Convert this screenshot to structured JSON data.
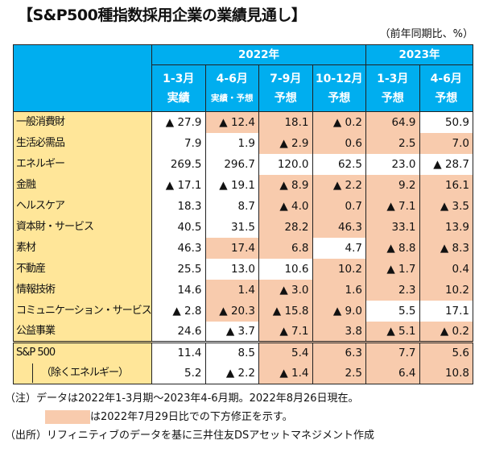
{
  "title": "【S&P500種指数採用企業の業績見通し】",
  "unit": "（前年同期比、%）",
  "colors": {
    "header": "#00aeef",
    "label": "#ffe699",
    "revised_down": "#f8cbad"
  },
  "chart_data": {
    "type": "table",
    "years": [
      {
        "label": "2022年",
        "span": 4
      },
      {
        "label": "2023年",
        "span": 2
      }
    ],
    "columns": [
      {
        "period": "1-3月",
        "status": "実績"
      },
      {
        "period": "4-6月",
        "status": "実績・予想"
      },
      {
        "period": "7-9月",
        "status": "予想"
      },
      {
        "period": "10-12月",
        "status": "予想"
      },
      {
        "period": "1-3月",
        "status": "予想"
      },
      {
        "period": "4-6月",
        "status": "予想"
      }
    ],
    "rows": [
      {
        "label": "一般消費財",
        "values": [
          "▲ 27.9",
          "▲ 12.4",
          "18.1",
          "▲ 0.2",
          "64.9",
          "50.9"
        ],
        "revised_down": [
          false,
          true,
          true,
          true,
          true,
          false
        ]
      },
      {
        "label": "生活必需品",
        "values": [
          "7.9",
          "1.9",
          "▲ 2.9",
          "0.6",
          "2.5",
          "7.0"
        ],
        "revised_down": [
          false,
          false,
          true,
          true,
          true,
          true
        ]
      },
      {
        "label": "エネルギー",
        "values": [
          "269.5",
          "296.7",
          "120.0",
          "62.5",
          "23.0",
          "▲ 28.7"
        ],
        "revised_down": [
          false,
          false,
          false,
          false,
          false,
          false
        ]
      },
      {
        "label": "金融",
        "values": [
          "▲ 17.1",
          "▲ 19.1",
          "▲ 8.9",
          "▲ 2.2",
          "9.2",
          "16.1"
        ],
        "revised_down": [
          false,
          false,
          true,
          true,
          true,
          true
        ]
      },
      {
        "label": "ヘルスケア",
        "values": [
          "18.3",
          "8.7",
          "▲ 4.0",
          "0.7",
          "▲ 7.1",
          "▲ 3.5"
        ],
        "revised_down": [
          false,
          false,
          true,
          true,
          true,
          true
        ]
      },
      {
        "label": "資本財・サービス",
        "values": [
          "40.5",
          "31.5",
          "28.2",
          "46.3",
          "33.1",
          "13.9"
        ],
        "revised_down": [
          false,
          false,
          true,
          true,
          true,
          true
        ]
      },
      {
        "label": "素材",
        "values": [
          "46.3",
          "17.4",
          "6.8",
          "4.7",
          "▲ 8.8",
          "▲ 8.3"
        ],
        "revised_down": [
          false,
          true,
          true,
          false,
          true,
          true
        ]
      },
      {
        "label": "不動産",
        "values": [
          "25.5",
          "13.0",
          "10.6",
          "10.2",
          "▲ 1.7",
          "0.4"
        ],
        "revised_down": [
          false,
          false,
          false,
          true,
          true,
          true
        ]
      },
      {
        "label": "情報技術",
        "values": [
          "14.6",
          "1.4",
          "▲ 3.0",
          "1.6",
          "2.3",
          "10.2"
        ],
        "revised_down": [
          false,
          true,
          true,
          true,
          true,
          true
        ]
      },
      {
        "label": "コミュニケーション・サービス",
        "values": [
          "▲ 2.8",
          "▲ 20.3",
          "▲ 15.8",
          "▲ 9.0",
          "5.5",
          "17.1"
        ],
        "revised_down": [
          false,
          true,
          true,
          true,
          false,
          false
        ]
      },
      {
        "label": "公益事業",
        "values": [
          "24.6",
          "▲ 3.7",
          "▲ 7.1",
          "3.8",
          "▲ 5.1",
          "▲ 0.2"
        ],
        "revised_down": [
          false,
          false,
          true,
          true,
          true,
          true
        ]
      },
      {
        "label": "S&P 500",
        "values": [
          "11.4",
          "8.5",
          "5.4",
          "6.3",
          "7.7",
          "5.6"
        ],
        "revised_down": [
          false,
          false,
          true,
          true,
          true,
          true
        ],
        "total": true
      },
      {
        "label": "（除くエネルギー）",
        "values": [
          "5.2",
          "▲ 2.2",
          "▲ 1.4",
          "2.5",
          "6.4",
          "10.8"
        ],
        "revised_down": [
          false,
          false,
          true,
          true,
          true,
          true
        ],
        "indent": true
      }
    ]
  },
  "notes": {
    "note1": "（注）データは2022年1-3月期～2023年4-6月期。2022年8月26日現在。",
    "note2": "は2022年7月29日比での下方修正を示す。",
    "source": "（出所）リフィニティブのデータを基に三井住友DSアセットマネジメント作成"
  }
}
